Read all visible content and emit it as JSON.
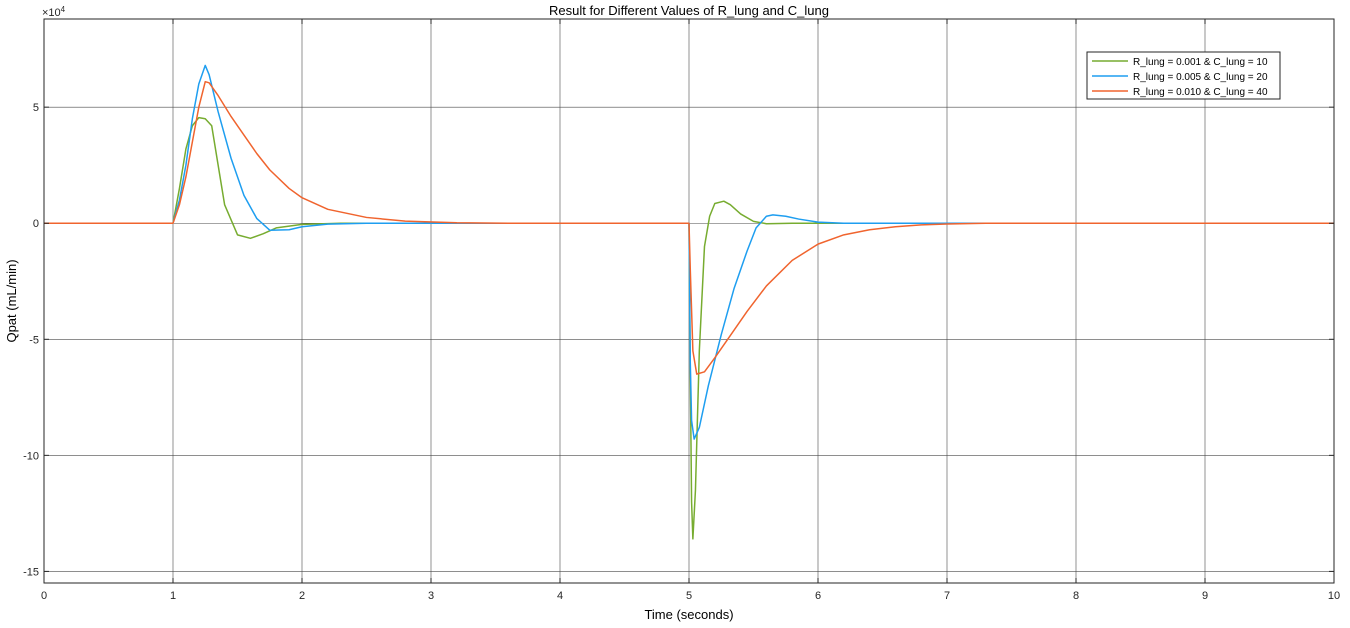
{
  "chart_data": {
    "type": "line",
    "title": "Result for Different Values of R_lung and C_lung",
    "xlabel": "Time (seconds)",
    "ylabel": "Qpat (mL/min)",
    "xlim": [
      0,
      10
    ],
    "ylim": [
      -155000,
      88000
    ],
    "xticks": [
      0,
      1,
      2,
      3,
      4,
      5,
      6,
      7,
      8,
      9,
      10
    ],
    "yticks": [
      {
        "value": 50000,
        "label": "5"
      },
      {
        "value": 0,
        "label": "0"
      },
      {
        "value": -50000,
        "label": "-5"
      },
      {
        "value": -100000,
        "label": "-10"
      },
      {
        "value": -150000,
        "label": "-15"
      }
    ],
    "y_exponent_label": "×10",
    "y_exponent_power": "4",
    "grid": true,
    "legend_position": "top-right",
    "series": [
      {
        "name": "R_lung = 0.001 & C_lung = 10",
        "color": "#77ac30",
        "points": [
          [
            0,
            0
          ],
          [
            1.0,
            0
          ],
          [
            1.05,
            15000
          ],
          [
            1.1,
            32000
          ],
          [
            1.15,
            42000
          ],
          [
            1.2,
            45500
          ],
          [
            1.25,
            45000
          ],
          [
            1.3,
            42000
          ],
          [
            1.35,
            25000
          ],
          [
            1.4,
            8000
          ],
          [
            1.5,
            -5000
          ],
          [
            1.6,
            -6500
          ],
          [
            1.7,
            -4500
          ],
          [
            1.8,
            -2000
          ],
          [
            2.0,
            -500
          ],
          [
            2.3,
            0
          ],
          [
            5.0,
            0
          ],
          [
            5.01,
            -65000
          ],
          [
            5.02,
            -120000
          ],
          [
            5.03,
            -136000
          ],
          [
            5.05,
            -115000
          ],
          [
            5.08,
            -55000
          ],
          [
            5.12,
            -10000
          ],
          [
            5.16,
            3000
          ],
          [
            5.2,
            8500
          ],
          [
            5.27,
            9500
          ],
          [
            5.32,
            8000
          ],
          [
            5.4,
            4000
          ],
          [
            5.5,
            800
          ],
          [
            5.6,
            -200
          ],
          [
            5.8,
            0
          ],
          [
            10,
            0
          ]
        ]
      },
      {
        "name": "R_lung = 0.005 & C_lung = 20",
        "color": "#1e9ef0",
        "points": [
          [
            0,
            0
          ],
          [
            1.0,
            0
          ],
          [
            1.05,
            10000
          ],
          [
            1.1,
            25000
          ],
          [
            1.15,
            45000
          ],
          [
            1.2,
            60000
          ],
          [
            1.25,
            68000
          ],
          [
            1.28,
            64000
          ],
          [
            1.35,
            48000
          ],
          [
            1.45,
            28000
          ],
          [
            1.55,
            12000
          ],
          [
            1.65,
            2000
          ],
          [
            1.75,
            -3000
          ],
          [
            1.9,
            -2800
          ],
          [
            2.0,
            -1500
          ],
          [
            2.2,
            -400
          ],
          [
            2.5,
            0
          ],
          [
            5.0,
            0
          ],
          [
            5.01,
            -60000
          ],
          [
            5.02,
            -85000
          ],
          [
            5.04,
            -93000
          ],
          [
            5.08,
            -88000
          ],
          [
            5.15,
            -70000
          ],
          [
            5.25,
            -48000
          ],
          [
            5.35,
            -28000
          ],
          [
            5.45,
            -12000
          ],
          [
            5.52,
            -2000
          ],
          [
            5.6,
            3000
          ],
          [
            5.65,
            3600
          ],
          [
            5.75,
            3000
          ],
          [
            5.85,
            1800
          ],
          [
            6.0,
            500
          ],
          [
            6.2,
            0
          ],
          [
            10,
            0
          ]
        ]
      },
      {
        "name": "R_lung = 0.010 & C_lung = 40",
        "color": "#f0642e",
        "points": [
          [
            0,
            0
          ],
          [
            1.0,
            0
          ],
          [
            1.05,
            8000
          ],
          [
            1.1,
            20000
          ],
          [
            1.15,
            35000
          ],
          [
            1.2,
            50000
          ],
          [
            1.25,
            61000
          ],
          [
            1.28,
            60500
          ],
          [
            1.35,
            55000
          ],
          [
            1.45,
            46000
          ],
          [
            1.55,
            38000
          ],
          [
            1.65,
            30000
          ],
          [
            1.75,
            23000
          ],
          [
            1.9,
            15000
          ],
          [
            2.0,
            11000
          ],
          [
            2.2,
            6000
          ],
          [
            2.5,
            2500
          ],
          [
            2.8,
            900
          ],
          [
            3.2,
            200
          ],
          [
            3.6,
            0
          ],
          [
            5.0,
            0
          ],
          [
            5.01,
            -20000
          ],
          [
            5.03,
            -55000
          ],
          [
            5.06,
            -65000
          ],
          [
            5.12,
            -64000
          ],
          [
            5.2,
            -58000
          ],
          [
            5.3,
            -50000
          ],
          [
            5.45,
            -38000
          ],
          [
            5.6,
            -27000
          ],
          [
            5.8,
            -16000
          ],
          [
            6.0,
            -9000
          ],
          [
            6.2,
            -5000
          ],
          [
            6.4,
            -2800
          ],
          [
            6.6,
            -1500
          ],
          [
            6.8,
            -700
          ],
          [
            7.0,
            -300
          ],
          [
            7.3,
            0
          ],
          [
            10,
            0
          ]
        ]
      }
    ]
  }
}
